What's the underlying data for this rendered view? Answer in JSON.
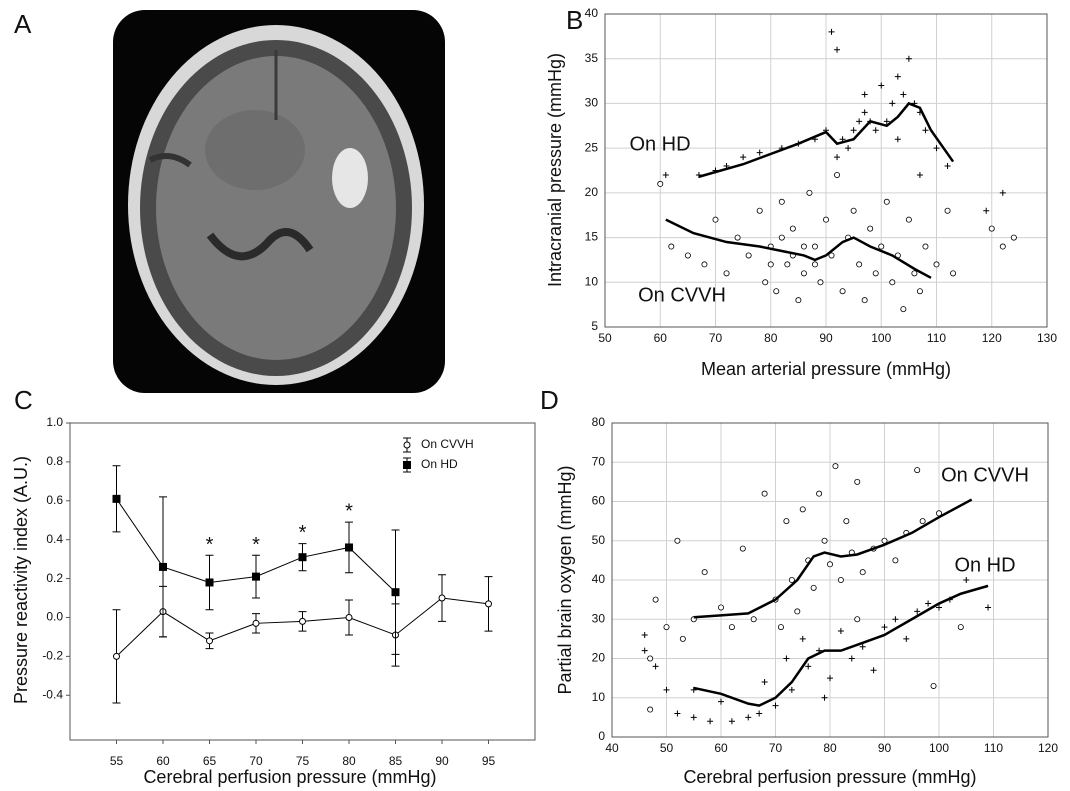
{
  "panels": [
    "A",
    "B",
    "C",
    "D"
  ],
  "chart_data": [
    {
      "type": "scatter",
      "x_label": "Mean arterial pressure (mmHg)",
      "y_label": "Intracranial pressure (mmHg)",
      "xlim": [
        50,
        130
      ],
      "xticks": [
        50,
        60,
        70,
        80,
        90,
        100,
        110,
        120,
        130
      ],
      "ylim": [
        5,
        40
      ],
      "yticks": [
        5,
        10,
        15,
        20,
        25,
        30,
        35,
        40
      ],
      "grid": true,
      "series": [
        {
          "name": "On HD",
          "color": "#000000",
          "marker": "plus",
          "x": [
            67,
            70,
            72,
            75,
            78,
            82,
            85,
            88,
            90,
            91,
            92,
            93,
            94,
            95,
            96,
            97,
            98,
            99,
            100,
            101,
            102,
            103,
            104,
            105,
            106,
            107,
            108,
            110,
            112,
            119,
            122,
            92,
            97,
            103,
            107,
            61
          ],
          "values": [
            22,
            22.5,
            23,
            24,
            24.5,
            25,
            25.5,
            26,
            27,
            38,
            36,
            26,
            25,
            27,
            28,
            29,
            28,
            27,
            32,
            28,
            30,
            33,
            31,
            35,
            30,
            29,
            27,
            25,
            23,
            18,
            20,
            24,
            31,
            26,
            22,
            22
          ],
          "trend": {
            "x": [
              67,
              75,
              85,
              90,
              92,
              95,
              98,
              101,
              103,
              105,
              107,
              109,
              113
            ],
            "values": [
              21.8,
              23.2,
              25.5,
              26.8,
              25.5,
              26,
              28,
              27.5,
              28.5,
              30,
              29.5,
              27,
              23.5
            ]
          }
        },
        {
          "name": "On CVVH",
          "color": "#000000",
          "marker": "circle",
          "x": [
            60,
            62,
            65,
            68,
            70,
            72,
            74,
            76,
            78,
            79,
            80,
            81,
            82,
            83,
            84,
            85,
            86,
            87,
            88,
            89,
            90,
            91,
            92,
            93,
            94,
            95,
            96,
            97,
            98,
            99,
            100,
            101,
            102,
            103,
            104,
            105,
            106,
            107,
            108,
            110,
            112,
            113,
            120,
            122,
            124,
            84,
            86,
            80,
            82,
            88
          ],
          "values": [
            21,
            14,
            13,
            12,
            17,
            11,
            15,
            13,
            18,
            10,
            14,
            9,
            19,
            12,
            16,
            8,
            11,
            20,
            14,
            10,
            17,
            13,
            22,
            9,
            15,
            18,
            12,
            8,
            16,
            11,
            14,
            19,
            10,
            13,
            7,
            17,
            11,
            9,
            14,
            12,
            18,
            11,
            16,
            14,
            15,
            13,
            14,
            12,
            15,
            12
          ],
          "trend": {
            "x": [
              61,
              66,
              72,
              78,
              82,
              86,
              88,
              90,
              93,
              95,
              98,
              102,
              106,
              109
            ],
            "values": [
              17,
              15.5,
              14.5,
              14,
              13.5,
              13,
              12.5,
              13,
              14.5,
              15,
              14,
              13,
              11.5,
              10.5
            ]
          }
        }
      ]
    },
    {
      "type": "errorbar",
      "x_label": "Cerebral perfusion pressure (mmHg)",
      "y_label": "Pressure reactivity index (A.U.)",
      "xlim": [
        50,
        100
      ],
      "xticks": [
        55,
        60,
        65,
        70,
        75,
        80,
        85,
        90,
        95
      ],
      "ylim": [
        -0.63,
        1.0
      ],
      "yticks": [
        {
          "value": 1.0,
          "label": "1.0"
        },
        0.8,
        0.6,
        0.4,
        0.2,
        {
          "value": 0,
          "label": "0.0"
        },
        -0.2,
        -0.4
      ],
      "grid": false,
      "legend": "upper right",
      "x": [
        55,
        60,
        65,
        70,
        75,
        80,
        85,
        90,
        95
      ],
      "series": [
        {
          "name": "On CVVH",
          "color": "#000000",
          "marker": "circle",
          "values": [
            -0.2,
            0.03,
            -0.12,
            -0.03,
            -0.02,
            0.0,
            -0.09,
            0.1,
            0.07
          ],
          "errors": [
            0.24,
            0.13,
            0.04,
            0.05,
            0.05,
            0.09,
            0.16,
            0.12,
            0.14
          ]
        },
        {
          "name": "On HD",
          "color": "#000000",
          "marker": "square",
          "values": [
            0.61,
            0.26,
            0.18,
            0.21,
            0.31,
            0.36,
            0.13,
            null,
            null
          ],
          "errors": [
            0.17,
            0.36,
            0.14,
            0.11,
            0.07,
            0.13,
            0.32,
            null,
            null
          ]
        }
      ],
      "annotations": [
        {
          "x": 65,
          "y": 0.37,
          "text": "*"
        },
        {
          "x": 70,
          "y": 0.37,
          "text": "*"
        },
        {
          "x": 75,
          "y": 0.43,
          "text": "*"
        },
        {
          "x": 80,
          "y": 0.54,
          "text": "*"
        }
      ]
    },
    {
      "type": "scatter",
      "x_label": "Cerebral perfusion pressure (mmHg)",
      "y_label": "Partial brain oxygen (mmHg)",
      "xlim": [
        40,
        120
      ],
      "xticks": [
        40,
        50,
        60,
        70,
        80,
        90,
        100,
        110,
        120
      ],
      "ylim": [
        0,
        80
      ],
      "yticks": [
        0,
        10,
        20,
        30,
        40,
        50,
        60,
        70,
        80
      ],
      "grid": true,
      "series": [
        {
          "name": "On CVVH",
          "color": "#000000",
          "marker": "circle",
          "x": [
            47,
            48,
            50,
            52,
            53,
            55,
            57,
            60,
            62,
            64,
            66,
            68,
            70,
            71,
            72,
            73,
            74,
            75,
            76,
            77,
            78,
            79,
            80,
            81,
            82,
            83,
            84,
            85,
            86,
            88,
            90,
            92,
            94,
            96,
            97,
            99,
            100,
            104,
            47,
            85
          ],
          "values": [
            20,
            35,
            28,
            50,
            25,
            30,
            42,
            33,
            28,
            48,
            30,
            62,
            35,
            28,
            55,
            40,
            32,
            58,
            45,
            38,
            62,
            50,
            44,
            69,
            40,
            55,
            47,
            65,
            42,
            48,
            50,
            45,
            52,
            68,
            55,
            13,
            57,
            28,
            7,
            30
          ],
          "trend": {
            "x": [
              55,
              60,
              65,
              70,
              74,
              77,
              79,
              82,
              85,
              90,
              95,
              100,
              106
            ],
            "values": [
              30.5,
              31,
              31.5,
              35,
              40,
              46,
              47,
              46,
              46.5,
              49,
              52,
              56,
              60.5
            ]
          }
        },
        {
          "name": "On HD",
          "color": "#000000",
          "marker": "plus",
          "x": [
            46,
            48,
            50,
            52,
            55,
            58,
            62,
            65,
            67,
            68,
            70,
            72,
            73,
            75,
            76,
            78,
            79,
            80,
            82,
            84,
            86,
            88,
            90,
            92,
            94,
            96,
            98,
            100,
            102,
            105,
            109,
            46,
            55,
            60
          ],
          "values": [
            22,
            18,
            12,
            6,
            5,
            4,
            4,
            5,
            6,
            14,
            8,
            20,
            12,
            25,
            18,
            22,
            10,
            15,
            27,
            20,
            23,
            17,
            28,
            30,
            25,
            32,
            34,
            33,
            35,
            40,
            33,
            26,
            12,
            9
          ],
          "trend": {
            "x": [
              55,
              60,
              65,
              67,
              70,
              73,
              76,
              79,
              82,
              85,
              90,
              95,
              100,
              104,
              109
            ],
            "values": [
              12.5,
              11,
              8.5,
              8,
              10,
              14,
              20,
              22,
              22,
              23.5,
              26,
              30,
              34,
              36.5,
              38.5
            ]
          }
        }
      ]
    }
  ]
}
